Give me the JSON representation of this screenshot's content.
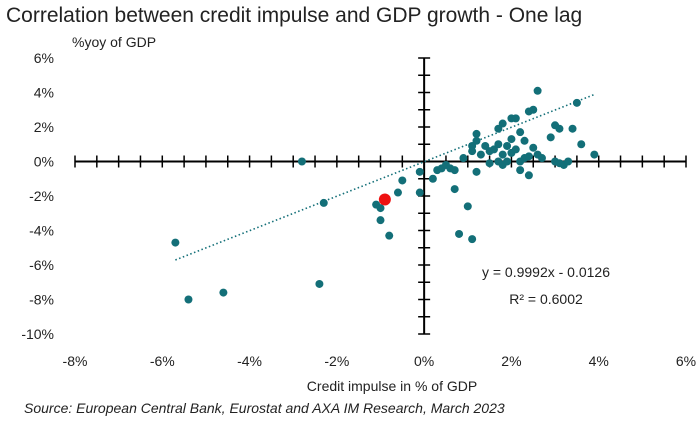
{
  "title": "Correlation between credit impulse and GDP growth - One lag",
  "source": "Source: European Central Bank, Eurostat and AXA IM Research, March 2023",
  "chart_data": {
    "type": "scatter",
    "title": "Correlation between credit impulse and GDP growth - One lag",
    "xlabel": "Credit impulse in % of GDP",
    "ylabel": "%yoy of GDP",
    "xlim": [
      -8,
      6
    ],
    "ylim": [
      -10,
      6
    ],
    "x_ticks": [
      -8,
      -6,
      -4,
      -2,
      0,
      2,
      4,
      6
    ],
    "y_ticks": [
      -10,
      -8,
      -6,
      -4,
      -2,
      0,
      2,
      4,
      6
    ],
    "x_tick_labels": [
      "-8%",
      "-6%",
      "-4%",
      "-2%",
      "0%",
      "2%",
      "4%",
      "6%"
    ],
    "y_tick_labels": [
      "-10%",
      "-8%",
      "-6%",
      "-4%",
      "-2%",
      "0%",
      "2%",
      "4%",
      "6%"
    ],
    "grid": false,
    "colors": {
      "points": "#136f78",
      "highlight": "#ee1111",
      "trend": "#136f78",
      "axis": "#000000"
    },
    "series": [
      {
        "points": [
          [
            -5.7,
            -4.7
          ],
          [
            -5.4,
            -8.0
          ],
          [
            -4.6,
            -7.6
          ],
          [
            -2.8,
            0.0
          ],
          [
            -2.3,
            -2.4
          ],
          [
            -2.4,
            -7.1
          ],
          [
            -1.1,
            -2.5
          ],
          [
            -1.0,
            -2.7
          ],
          [
            -1.0,
            -3.4
          ],
          [
            -0.9,
            -2.2
          ],
          [
            -0.8,
            -4.3
          ],
          [
            -0.6,
            -1.8
          ],
          [
            -0.5,
            -1.1
          ],
          [
            -0.1,
            -1.8
          ],
          [
            -0.1,
            -0.6
          ],
          [
            0.2,
            -1.0
          ],
          [
            0.3,
            -0.5
          ],
          [
            0.4,
            -0.4
          ],
          [
            0.5,
            -0.2
          ],
          [
            0.6,
            -0.4
          ],
          [
            0.7,
            -1.6
          ],
          [
            0.7,
            -0.5
          ],
          [
            0.8,
            -4.2
          ],
          [
            0.9,
            0.2
          ],
          [
            1.0,
            -2.6
          ],
          [
            1.1,
            -4.5
          ],
          [
            1.1,
            0.9
          ],
          [
            1.2,
            1.6
          ],
          [
            1.2,
            1.2
          ],
          [
            1.1,
            0.6
          ],
          [
            1.2,
            -0.6
          ],
          [
            1.3,
            0.4
          ],
          [
            1.4,
            0.9
          ],
          [
            1.5,
            0.6
          ],
          [
            1.5,
            -0.1
          ],
          [
            1.6,
            0.7
          ],
          [
            1.7,
            0.0
          ],
          [
            1.7,
            1.0
          ],
          [
            1.7,
            1.9
          ],
          [
            1.8,
            0.4
          ],
          [
            1.8,
            2.2
          ],
          [
            1.8,
            -0.2
          ],
          [
            1.9,
            0.9
          ],
          [
            1.9,
            0.0
          ],
          [
            2.0,
            2.5
          ],
          [
            2.0,
            0.5
          ],
          [
            2.0,
            1.3
          ],
          [
            2.1,
            0.7
          ],
          [
            2.1,
            2.5
          ],
          [
            2.2,
            1.7
          ],
          [
            2.2,
            0.0
          ],
          [
            2.2,
            -0.5
          ],
          [
            2.3,
            0.2
          ],
          [
            2.3,
            1.2
          ],
          [
            2.4,
            2.9
          ],
          [
            2.4,
            0.3
          ],
          [
            2.4,
            -0.8
          ],
          [
            2.5,
            0.8
          ],
          [
            2.5,
            3.0
          ],
          [
            2.6,
            4.1
          ],
          [
            2.6,
            0.4
          ],
          [
            2.7,
            0.2
          ],
          [
            2.9,
            1.4
          ],
          [
            3.0,
            2.1
          ],
          [
            3.0,
            0.0
          ],
          [
            3.1,
            1.9
          ],
          [
            3.1,
            -0.1
          ],
          [
            3.2,
            -0.2
          ],
          [
            3.3,
            0.0
          ],
          [
            3.4,
            1.9
          ],
          [
            3.5,
            3.4
          ],
          [
            3.6,
            1.0
          ],
          [
            3.9,
            0.4
          ]
        ]
      }
    ],
    "highlight_point": [
      -0.9,
      -2.2
    ],
    "trendline": {
      "type": "linear",
      "slope": 0.9992,
      "intercept": -0.0126,
      "x_range": [
        -5.7,
        3.9
      ],
      "equation": "y = 0.9992x - 0.0126",
      "r2_label": "R² = 0.6002"
    }
  }
}
